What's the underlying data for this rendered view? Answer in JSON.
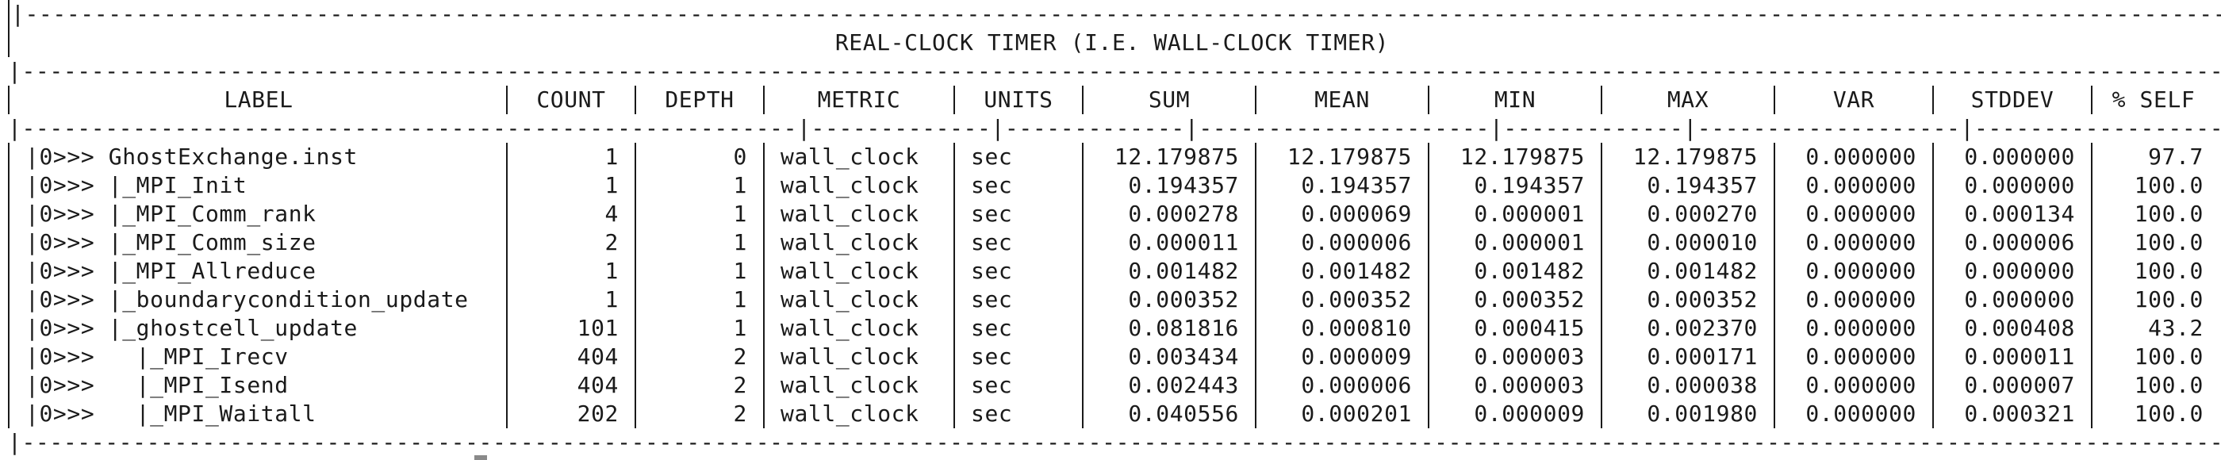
{
  "title": "REAL-CLOCK TIMER (I.E. WALL-CLOCK TIMER)",
  "columns": [
    "LABEL",
    "COUNT",
    "DEPTH",
    "METRIC",
    "UNITS",
    "SUM",
    "MEAN",
    "MIN",
    "MAX",
    "VAR",
    "STDDEV",
    "% SELF"
  ],
  "rows": [
    [
      "|0>>> GhostExchange.inst",
      "1",
      "0",
      "wall_clock",
      "sec",
      "12.179875",
      "12.179875",
      "12.179875",
      "12.179875",
      "0.000000",
      "0.000000",
      "97.7"
    ],
    [
      "|0>>> |_MPI_Init",
      "1",
      "1",
      "wall_clock",
      "sec",
      "0.194357",
      "0.194357",
      "0.194357",
      "0.194357",
      "0.000000",
      "0.000000",
      "100.0"
    ],
    [
      "|0>>> |_MPI_Comm_rank",
      "4",
      "1",
      "wall_clock",
      "sec",
      "0.000278",
      "0.000069",
      "0.000001",
      "0.000270",
      "0.000000",
      "0.000134",
      "100.0"
    ],
    [
      "|0>>> |_MPI_Comm_size",
      "2",
      "1",
      "wall_clock",
      "sec",
      "0.000011",
      "0.000006",
      "0.000001",
      "0.000010",
      "0.000000",
      "0.000006",
      "100.0"
    ],
    [
      "|0>>> |_MPI_Allreduce",
      "1",
      "1",
      "wall_clock",
      "sec",
      "0.001482",
      "0.001482",
      "0.001482",
      "0.001482",
      "0.000000",
      "0.000000",
      "100.0"
    ],
    [
      "|0>>> |_boundarycondition_update",
      "1",
      "1",
      "wall_clock",
      "sec",
      "0.000352",
      "0.000352",
      "0.000352",
      "0.000352",
      "0.000000",
      "0.000000",
      "100.0"
    ],
    [
      "|0>>> |_ghostcell_update",
      "101",
      "1",
      "wall_clock",
      "sec",
      "0.081816",
      "0.000810",
      "0.000415",
      "0.002370",
      "0.000000",
      "0.000408",
      "43.2"
    ],
    [
      "|0>>>   |_MPI_Irecv",
      "404",
      "2",
      "wall_clock",
      "sec",
      "0.003434",
      "0.000009",
      "0.000003",
      "0.000171",
      "0.000000",
      "0.000011",
      "100.0"
    ],
    [
      "|0>>>   |_MPI_Isend",
      "404",
      "2",
      "wall_clock",
      "sec",
      "0.002443",
      "0.000006",
      "0.000003",
      "0.000038",
      "0.000000",
      "0.000007",
      "100.0"
    ],
    [
      "|0>>>   |_MPI_Waitall",
      "202",
      "2",
      "wall_clock",
      "sec",
      "0.040556",
      "0.000201",
      "0.000009",
      "0.001980",
      "0.000000",
      "0.000321",
      "100.0"
    ]
  ]
}
